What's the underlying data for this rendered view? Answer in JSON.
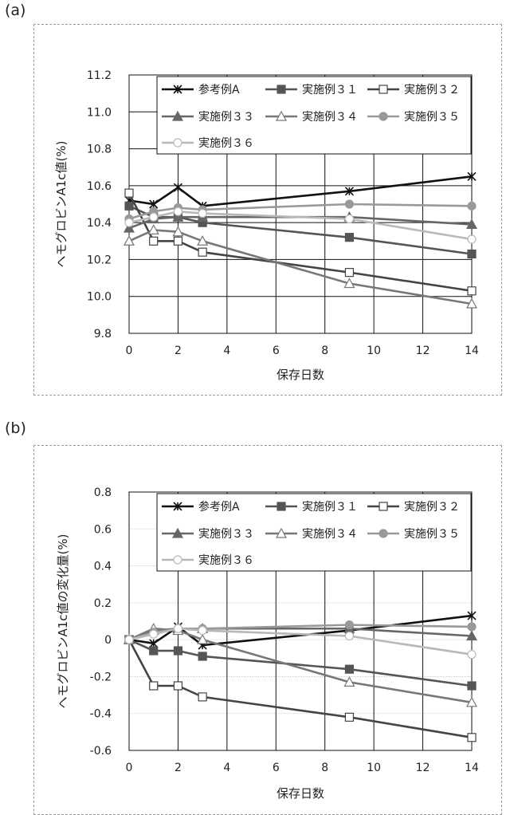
{
  "panels": [
    {
      "label": "(a)",
      "chart_data": {
        "type": "line",
        "xlabel": "保存日数",
        "ylabel": "ヘモグロビンA1c値(%)",
        "xlim": [
          0,
          14
        ],
        "ylim": [
          9.8,
          11.2
        ],
        "x_ticks": [
          "0",
          "2",
          "4",
          "6",
          "8",
          "10",
          "12",
          "14"
        ],
        "y_ticks": [
          "9.8",
          "10.0",
          "10.2",
          "10.4",
          "10.6",
          "10.8",
          "11.0",
          "11.2"
        ],
        "grid": true,
        "legend_position": "top",
        "series": [
          {
            "name": "参考例A",
            "color": "#111111",
            "marker": "asterisk",
            "x": [
              0,
              1,
              2,
              3,
              9,
              14
            ],
            "y": [
              10.52,
              10.5,
              10.59,
              10.49,
              10.57,
              10.65
            ]
          },
          {
            "name": "実施例３１",
            "color": "#555555",
            "marker": "square-filled",
            "x": [
              0,
              1,
              2,
              3,
              9,
              14
            ],
            "y": [
              10.49,
              10.43,
              10.43,
              10.4,
              10.32,
              10.23
            ]
          },
          {
            "name": "実施例３２",
            "color": "#444444",
            "marker": "square-open",
            "x": [
              0,
              1,
              2,
              3,
              9,
              14
            ],
            "y": [
              10.56,
              10.3,
              10.3,
              10.24,
              10.13,
              10.03
            ]
          },
          {
            "name": "実施例３３",
            "color": "#666666",
            "marker": "triangle-filled",
            "x": [
              0,
              1,
              2,
              3,
              9,
              14
            ],
            "y": [
              10.37,
              10.42,
              10.43,
              10.43,
              10.43,
              10.39
            ]
          },
          {
            "name": "実施例３４",
            "color": "#777777",
            "marker": "triangle-open",
            "x": [
              0,
              1,
              2,
              3,
              9,
              14
            ],
            "y": [
              10.3,
              10.36,
              10.35,
              10.3,
              10.07,
              9.96
            ]
          },
          {
            "name": "実施例３５",
            "color": "#999999",
            "marker": "circle-filled",
            "x": [
              0,
              1,
              2,
              3,
              9,
              14
            ],
            "y": [
              10.42,
              10.46,
              10.48,
              10.47,
              10.5,
              10.49
            ]
          },
          {
            "name": "実施例３６",
            "color": "#b8b8b8",
            "marker": "circle-open",
            "x": [
              0,
              1,
              2,
              3,
              9,
              14
            ],
            "y": [
              10.4,
              10.43,
              10.46,
              10.45,
              10.42,
              10.31
            ]
          }
        ]
      }
    },
    {
      "label": "(b)",
      "chart_data": {
        "type": "line",
        "xlabel": "保存日数",
        "ylabel": "ヘモグロビンA1c値の変化量(%)",
        "xlim": [
          0,
          14
        ],
        "ylim": [
          -0.6,
          0.8
        ],
        "x_ticks": [
          "0",
          "2",
          "4",
          "6",
          "8",
          "10",
          "12",
          "14"
        ],
        "y_ticks": [
          "-0.6",
          "-0.4",
          "-0.2",
          "0",
          "0.2",
          "0.4",
          "0.6",
          "0.8"
        ],
        "grid": true,
        "legend_position": "top",
        "series": [
          {
            "name": "参考例A",
            "color": "#111111",
            "marker": "asterisk",
            "x": [
              0,
              1,
              2,
              3,
              9,
              14
            ],
            "y": [
              0,
              -0.02,
              0.07,
              -0.03,
              0.05,
              0.13
            ]
          },
          {
            "name": "実施例３１",
            "color": "#555555",
            "marker": "square-filled",
            "x": [
              0,
              1,
              2,
              3,
              9,
              14
            ],
            "y": [
              0,
              -0.06,
              -0.06,
              -0.09,
              -0.16,
              -0.25
            ]
          },
          {
            "name": "実施例３２",
            "color": "#444444",
            "marker": "square-open",
            "x": [
              0,
              1,
              2,
              3,
              9,
              14
            ],
            "y": [
              0,
              -0.25,
              -0.25,
              -0.31,
              -0.42,
              -0.53
            ]
          },
          {
            "name": "実施例３３",
            "color": "#666666",
            "marker": "triangle-filled",
            "x": [
              0,
              1,
              2,
              3,
              9,
              14
            ],
            "y": [
              0,
              0.05,
              0.06,
              0.06,
              0.06,
              0.02
            ]
          },
          {
            "name": "実施例３４",
            "color": "#777777",
            "marker": "triangle-open",
            "x": [
              0,
              1,
              2,
              3,
              9,
              14
            ],
            "y": [
              0,
              0.06,
              0.05,
              0.0,
              -0.23,
              -0.34
            ]
          },
          {
            "name": "実施例３５",
            "color": "#999999",
            "marker": "circle-filled",
            "x": [
              0,
              1,
              2,
              3,
              9,
              14
            ],
            "y": [
              0,
              0.04,
              0.06,
              0.06,
              0.08,
              0.07
            ]
          },
          {
            "name": "実施例３６",
            "color": "#b8b8b8",
            "marker": "circle-open",
            "x": [
              0,
              1,
              2,
              3,
              9,
              14
            ],
            "y": [
              0,
              0.03,
              0.06,
              0.05,
              0.02,
              -0.08
            ]
          }
        ]
      }
    }
  ]
}
